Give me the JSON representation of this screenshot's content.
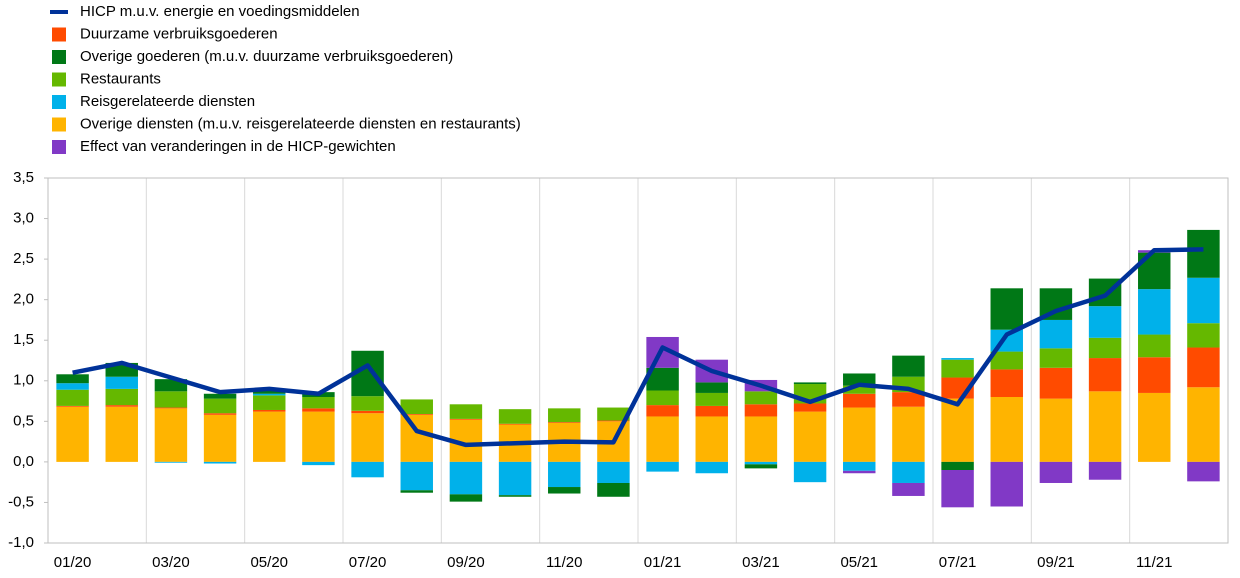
{
  "chart_data": {
    "type": "stacked-bar-line",
    "categories": [
      "01/20",
      null,
      "03/20",
      null,
      "05/20",
      null,
      "07/20",
      null,
      "09/20",
      null,
      "11/20",
      null,
      "01/21",
      null,
      "03/21",
      null,
      "05/21",
      null,
      "07/21",
      null,
      "09/21",
      null,
      "11/21",
      null
    ],
    "series": [
      {
        "name": "HICP m.u.v. energie en voedingsmiddelen",
        "type": "line",
        "color": "#003299",
        "values": [
          1.1,
          1.22,
          1.04,
          0.86,
          0.9,
          0.84,
          1.19,
          0.38,
          0.21,
          0.23,
          0.25,
          0.24,
          1.41,
          1.12,
          0.94,
          0.74,
          0.95,
          0.9,
          0.71,
          1.57,
          1.86,
          2.05,
          2.61,
          2.62
        ]
      },
      {
        "name": "Duurzame verbruiksgoederen",
        "type": "bar",
        "color": "#ff4b00",
        "values": [
          0.01,
          0.02,
          0.01,
          0.02,
          0.02,
          0.04,
          0.03,
          0.01,
          0.01,
          0.01,
          0.01,
          0.01,
          0.14,
          0.13,
          0.15,
          0.1,
          0.17,
          0.18,
          0.26,
          0.34,
          0.38,
          0.41,
          0.44,
          0.49
        ]
      },
      {
        "name": "Overige goederen (m.u.v. duurzame verbruiksgoederen)",
        "type": "bar",
        "color": "#007816",
        "values": [
          0.11,
          0.17,
          0.15,
          0.06,
          0.04,
          0.06,
          0.56,
          -0.03,
          -0.09,
          -0.02,
          -0.08,
          -0.17,
          0.28,
          0.13,
          -0.05,
          0.02,
          0.15,
          0.26,
          -0.1,
          0.51,
          0.39,
          0.34,
          0.45,
          0.59
        ]
      },
      {
        "name": "Restaurants",
        "type": "bar",
        "color": "#65b800",
        "values": [
          0.2,
          0.2,
          0.2,
          0.18,
          0.18,
          0.14,
          0.18,
          0.18,
          0.18,
          0.18,
          0.17,
          0.16,
          0.18,
          0.16,
          0.16,
          0.24,
          0.1,
          0.19,
          0.22,
          0.22,
          0.24,
          0.25,
          0.28,
          0.3
        ]
      },
      {
        "name": "Reisgerelateerde diensten",
        "type": "bar",
        "color": "#00b1ea",
        "values": [
          0.08,
          0.15,
          -0.01,
          -0.02,
          0.02,
          -0.04,
          -0.19,
          -0.35,
          -0.4,
          -0.41,
          -0.31,
          -0.26,
          -0.12,
          -0.14,
          -0.03,
          -0.25,
          -0.11,
          -0.26,
          0.02,
          0.27,
          0.35,
          0.39,
          0.56,
          0.56
        ]
      },
      {
        "name": "Overige diensten (m.u.v. reisgerelateerde diensten en restaurants)",
        "type": "bar",
        "color": "#ffb400",
        "values": [
          0.68,
          0.68,
          0.66,
          0.58,
          0.62,
          0.62,
          0.6,
          0.58,
          0.52,
          0.46,
          0.48,
          0.5,
          0.56,
          0.56,
          0.56,
          0.62,
          0.67,
          0.68,
          0.78,
          0.8,
          0.78,
          0.87,
          0.85,
          0.92
        ]
      },
      {
        "name": "Effect van veranderingen in de HICP-gewichten",
        "type": "bar",
        "color": "#8139c6",
        "values": [
          0,
          0,
          0,
          0,
          0,
          0,
          0,
          0,
          0,
          0,
          0,
          0,
          0.38,
          0.28,
          0.14,
          0,
          -0.03,
          -0.16,
          -0.46,
          -0.55,
          -0.26,
          -0.22,
          0.03,
          -0.24
        ]
      }
    ],
    "stack_order": [
      5,
      1,
      3,
      4,
      2,
      6
    ],
    "ylim": [
      -1.0,
      3.5
    ],
    "yticks": [
      {
        "value": -1.0,
        "label": "-1,0"
      },
      {
        "value": -0.5,
        "label": "-0,5"
      },
      {
        "value": 0,
        "label": "0,0"
      },
      {
        "value": 0.5,
        "label": "0,5"
      },
      {
        "value": 1.0,
        "label": "1,0"
      },
      {
        "value": 1.5,
        "label": "1,5"
      },
      {
        "value": 2.0,
        "label": "2,0"
      },
      {
        "value": 2.5,
        "label": "2,5"
      },
      {
        "value": 3.0,
        "label": "3,0"
      },
      {
        "value": 3.5,
        "label": "3,5"
      }
    ]
  }
}
